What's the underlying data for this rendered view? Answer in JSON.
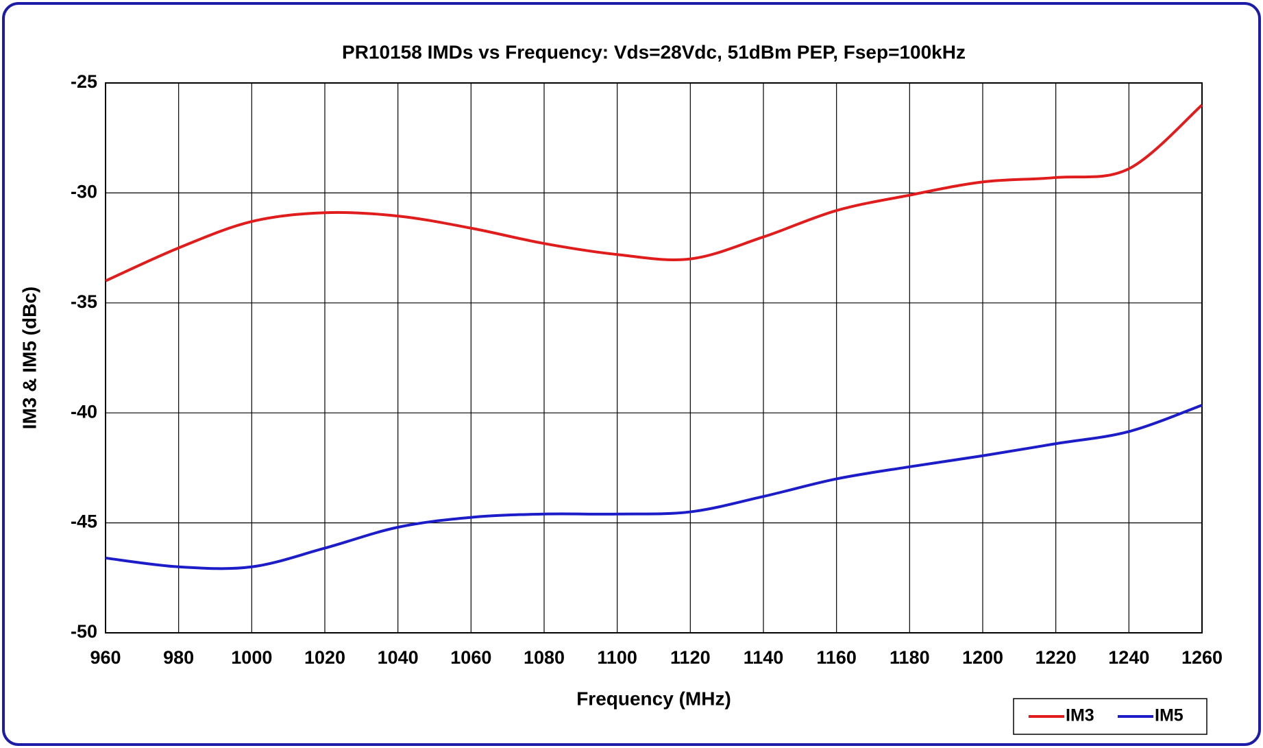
{
  "chart_data": {
    "type": "line",
    "title": "PR10158 IMDs vs Frequency: Vds=28Vdc, 51dBm PEP, Fsep=100kHz",
    "x_label": "Frequency (MHz)",
    "y_label": "IM3 & IM5 (dBc)",
    "x": [
      960,
      980,
      1000,
      1020,
      1040,
      1060,
      1080,
      1100,
      1120,
      1140,
      1160,
      1180,
      1200,
      1220,
      1240,
      1260
    ],
    "series": [
      {
        "name": "IM3",
        "color": "#e01c1c",
        "values": [
          -34.0,
          -32.5,
          -31.3,
          -30.9,
          -31.05,
          -31.6,
          -32.3,
          -32.8,
          -33.0,
          -32.0,
          -30.8,
          -30.1,
          -29.5,
          -29.3,
          -28.9,
          -26.0
        ]
      },
      {
        "name": "IM5",
        "color": "#1c1cc8",
        "values": [
          -46.6,
          -47.0,
          -47.0,
          -46.15,
          -45.2,
          -44.75,
          -44.6,
          -44.6,
          -44.5,
          -43.8,
          -43.0,
          -42.45,
          -41.95,
          -41.4,
          -40.85,
          -39.65
        ]
      }
    ],
    "xlim": [
      960,
      1260
    ],
    "xticks": [
      960,
      980,
      1000,
      1020,
      1040,
      1060,
      1080,
      1100,
      1120,
      1140,
      1160,
      1180,
      1200,
      1220,
      1240,
      1260
    ],
    "ylim": [
      -50,
      -25
    ],
    "yticks": [
      -50,
      -45,
      -40,
      -35,
      -30,
      -25
    ],
    "grid": true,
    "legend": "lower right"
  }
}
